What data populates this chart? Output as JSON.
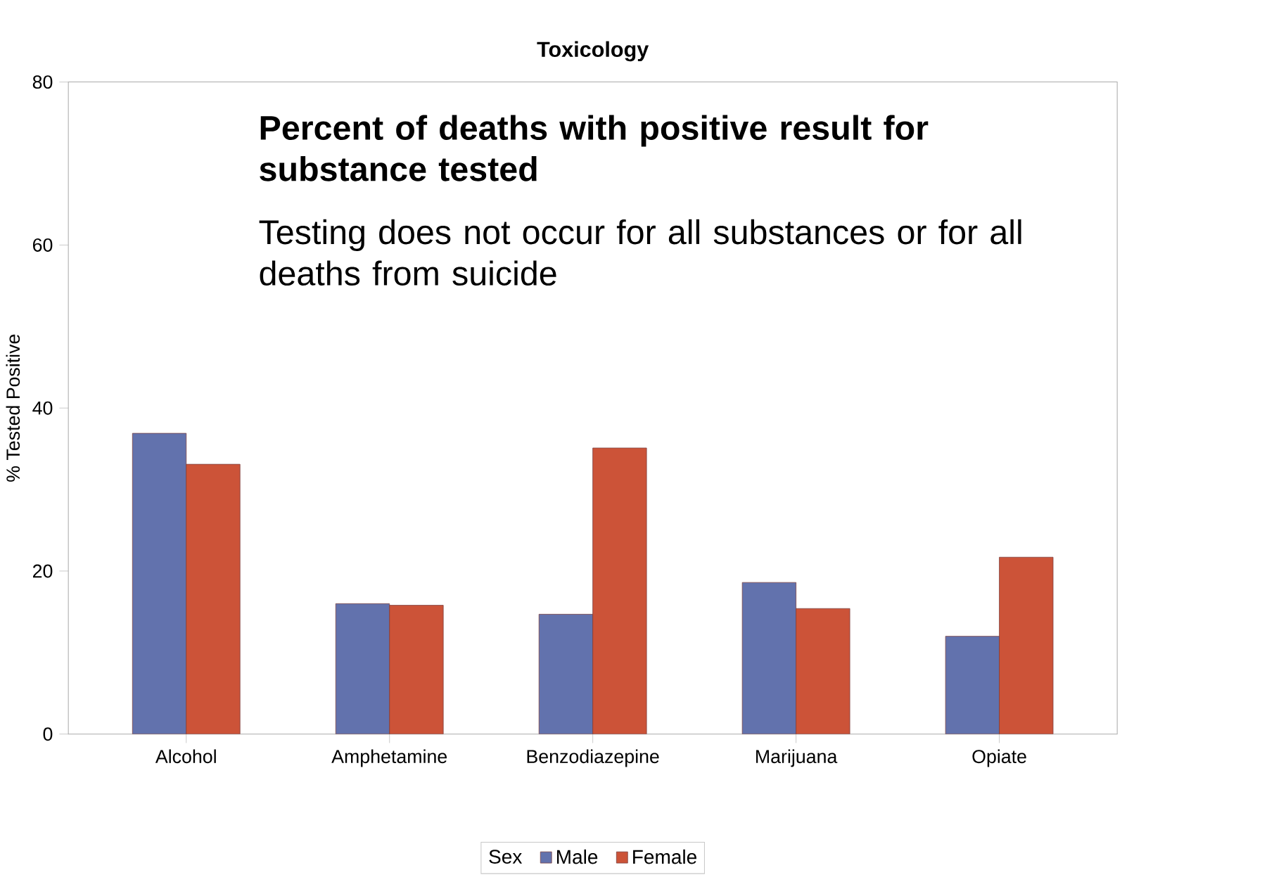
{
  "chart_data": {
    "type": "bar",
    "title": "Toxicology",
    "ylabel": "% Tested Positive",
    "categories": [
      "Alcohol",
      "Amphetamine",
      "Benzodiazepine",
      "Marijuana",
      "Opiate"
    ],
    "series": [
      {
        "name": "Male",
        "color": "#6272ad",
        "values": [
          36.9,
          16.0,
          14.7,
          18.6,
          12.0
        ]
      },
      {
        "name": "Female",
        "color": "#cc5338",
        "values": [
          33.1,
          15.8,
          35.1,
          15.4,
          21.7
        ]
      }
    ],
    "legend_title": "Sex",
    "legend": "bottom",
    "ylim": [
      0,
      80
    ],
    "yticks": [
      0,
      20,
      40,
      60,
      80
    ],
    "grid": false,
    "annotations": [
      "Percent of deaths with positive result for substance tested",
      "Testing does not occur for all substances or for all deaths from suicide"
    ]
  }
}
